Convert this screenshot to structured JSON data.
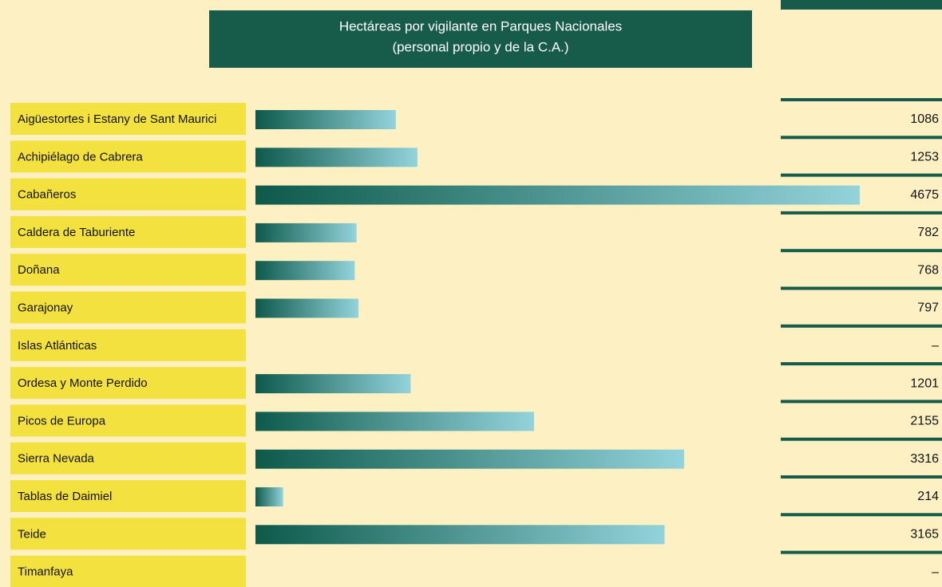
{
  "chart_data": {
    "type": "bar",
    "orientation": "horizontal",
    "title": [
      "Hectáreas por vigilante en Parques Nacionales",
      "(personal propio y de la C.A.)"
    ],
    "categories": [
      "Aigüestortes i Estany de Sant Maurici",
      "Achipiélago de Cabrera",
      "Cabañeros",
      "Caldera de Taburiente",
      "Doñana",
      "Garajonay",
      "Islas Atlánticas",
      "Ordesa y Monte Perdido",
      "Picos de Europa",
      "Sierra Nevada",
      "Tablas de Daimiel",
      "Teide",
      "Timanfaya"
    ],
    "values": [
      1086,
      1253,
      4675,
      782,
      768,
      797,
      null,
      1201,
      2155,
      3316,
      214,
      3165,
      null
    ],
    "value_labels": [
      "1086",
      "1253",
      "4675",
      "782",
      "768",
      "797",
      "–",
      "1201",
      "2155",
      "3316",
      "214",
      "3165",
      "–"
    ],
    "color": [
      "#0d5a4b",
      "#93d3dc"
    ],
    "label_color": "#f2e13f",
    "accent_color": "#175c4b"
  }
}
